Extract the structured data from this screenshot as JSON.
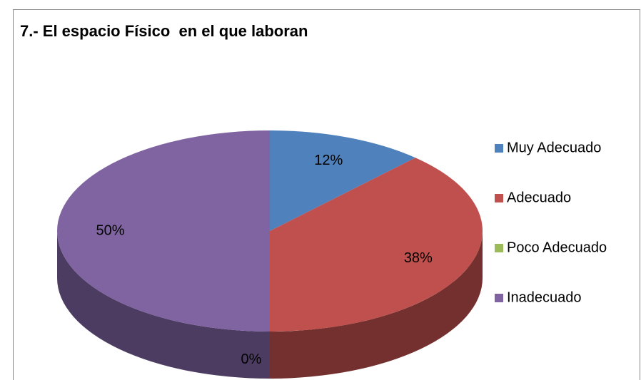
{
  "chart_data": {
    "type": "pie",
    "title": "7.- El espacio Físico  en el que laboran",
    "categories": [
      "Muy Adecuado",
      "Adecuado",
      "Poco Adecuado",
      "Inadecuado"
    ],
    "values": [
      12,
      38,
      0,
      50
    ],
    "value_labels": [
      "12%",
      "38%",
      "0%",
      "50%"
    ],
    "colors": [
      "#4f81bd",
      "#c0504d",
      "#9bbb59",
      "#8064a2"
    ],
    "legend": "right"
  }
}
